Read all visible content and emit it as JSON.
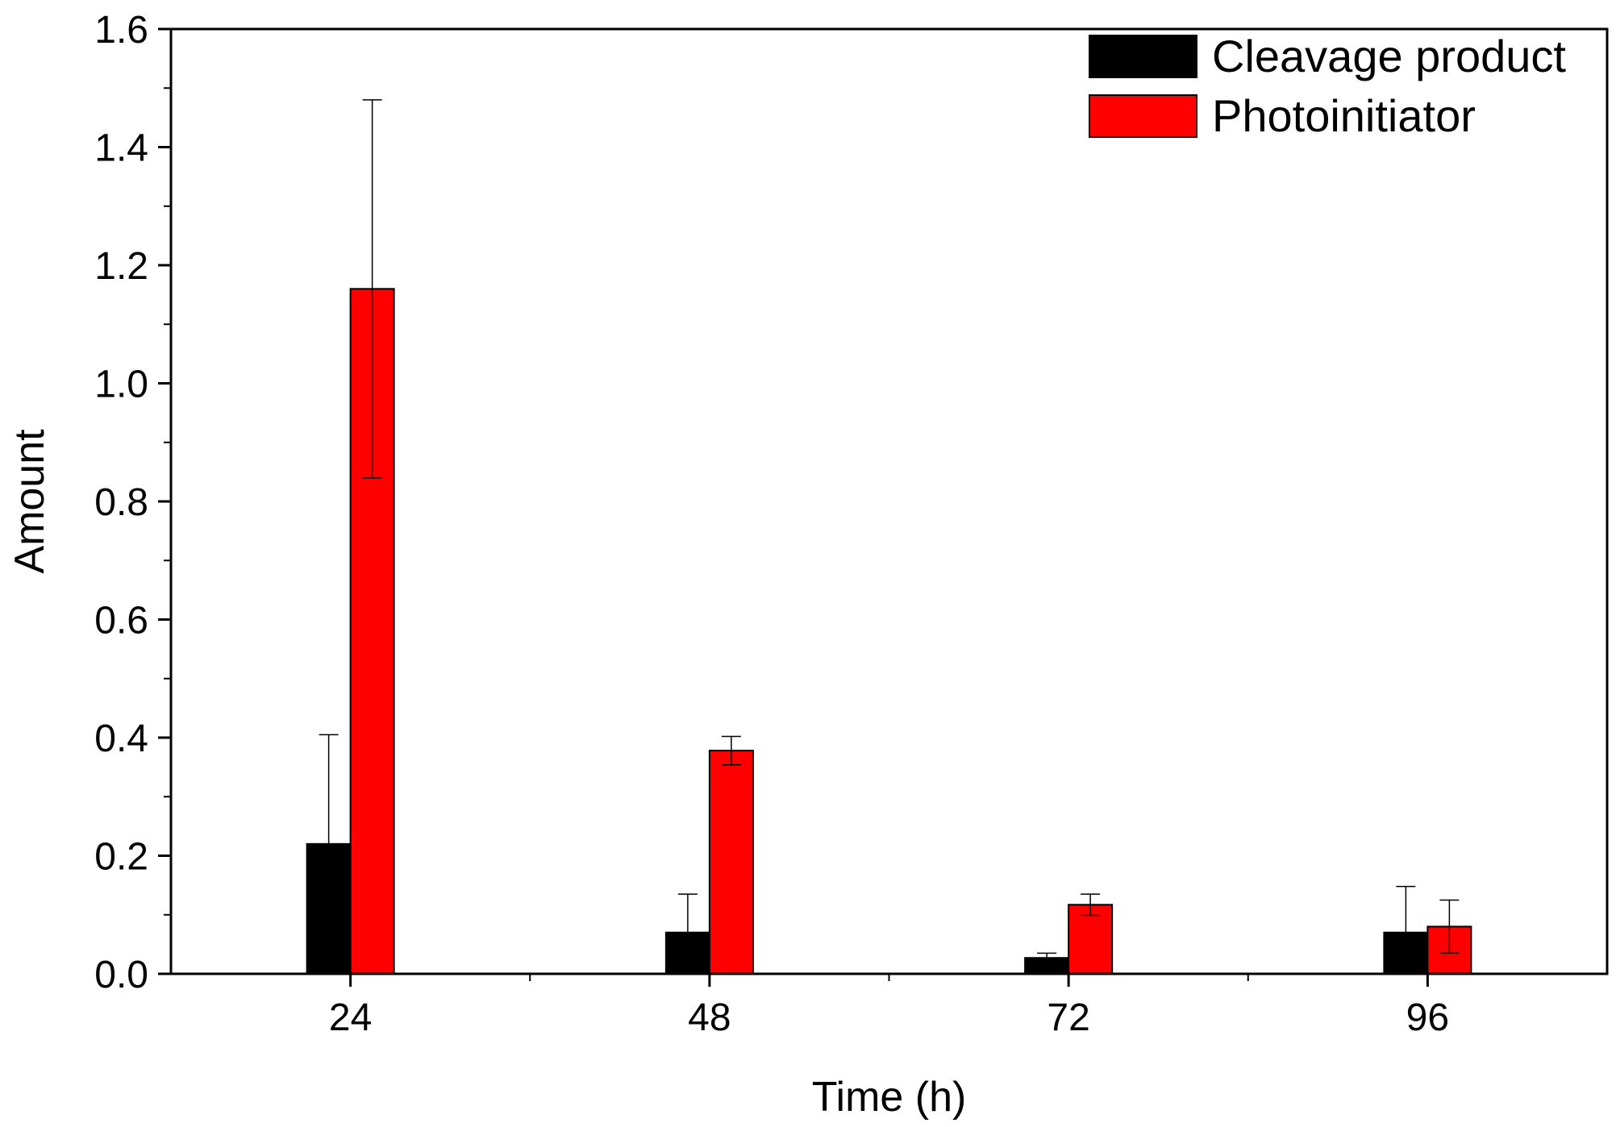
{
  "chart_data": {
    "type": "bar",
    "title": "",
    "xlabel": "Time (h)",
    "ylabel": "Amount",
    "categories": [
      "24",
      "48",
      "72",
      "96"
    ],
    "ylim": [
      0,
      1.6
    ],
    "yticks": [
      "0.0",
      "0.2",
      "0.4",
      "0.6",
      "0.8",
      "1.0",
      "1.2",
      "1.4",
      "1.6"
    ],
    "grid": false,
    "legend_position": "top-right",
    "series": [
      {
        "name": "Cleavage product",
        "color": "#000000",
        "values": [
          0.22,
          0.07,
          0.027,
          0.07
        ],
        "errors": [
          0.185,
          0.065,
          0.008,
          0.078
        ]
      },
      {
        "name": "Photoinitiator",
        "color": "#ff0000",
        "values": [
          1.16,
          0.378,
          0.117,
          0.08
        ],
        "errors": [
          0.32,
          0.024,
          0.018,
          0.045
        ]
      }
    ]
  }
}
